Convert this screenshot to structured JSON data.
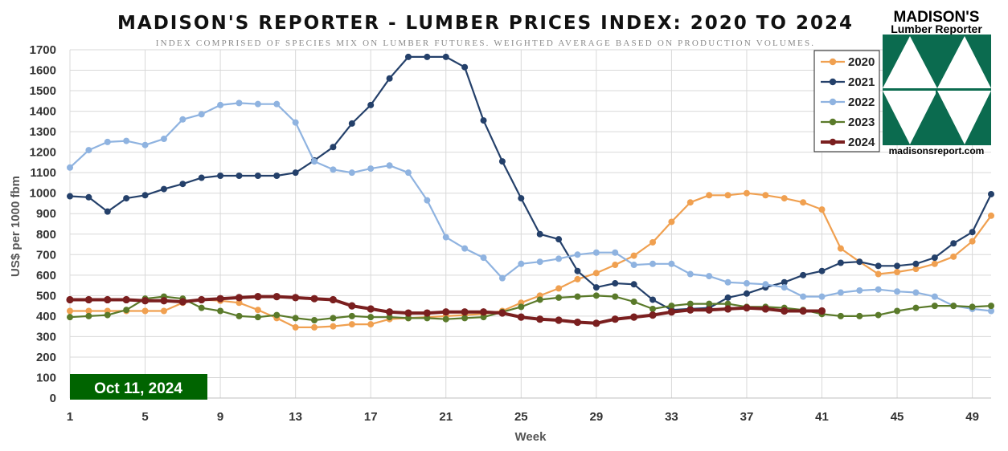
{
  "chart_data": {
    "type": "line",
    "title": "MADISON'S REPORTER - LUMBER PRICES INDEX: 2020 TO 2024",
    "subtitle": "INDEX COMPRISED OF SPECIES MIX ON LUMBER FUTURES. WEIGHTED AVERAGE BASED ON PRODUCTION VOLUMES.",
    "xlabel": "Week",
    "ylabel": "US$ per 1000 fbm",
    "xlim": [
      1,
      50
    ],
    "ylim": [
      0,
      1700
    ],
    "x_ticks": [
      1,
      5,
      9,
      13,
      17,
      21,
      25,
      29,
      33,
      37,
      41,
      45,
      49
    ],
    "y_ticks": [
      0,
      100,
      200,
      300,
      400,
      500,
      600,
      700,
      800,
      900,
      1000,
      1100,
      1200,
      1300,
      1400,
      1500,
      1600,
      1700
    ],
    "grid": "horizontal and vertical",
    "legend_position": "top-right",
    "series": [
      {
        "name": "2020",
        "color": "#f0a050",
        "values": [
          425,
          425,
          425,
          425,
          425,
          425,
          465,
          480,
          475,
          465,
          430,
          390,
          345,
          345,
          350,
          360,
          360,
          385,
          390,
          395,
          400,
          405,
          410,
          425,
          465,
          500,
          535,
          580,
          610,
          650,
          695,
          760,
          860,
          955,
          990,
          990,
          1000,
          990,
          975,
          955,
          920,
          730,
          665,
          605,
          615,
          630,
          655,
          690,
          765,
          890
        ]
      },
      {
        "name": "2021",
        "color": "#24406a",
        "values": [
          985,
          980,
          910,
          975,
          990,
          1020,
          1045,
          1075,
          1085,
          1085,
          1085,
          1085,
          1100,
          1160,
          1225,
          1340,
          1430,
          1560,
          1665,
          1665,
          1665,
          1615,
          1355,
          1155,
          975,
          800,
          775,
          620,
          540,
          560,
          555,
          480,
          430,
          435,
          440,
          490,
          510,
          540,
          565,
          600,
          620,
          660,
          665,
          645,
          645,
          655,
          685,
          755,
          810,
          995
        ]
      },
      {
        "name": "2022",
        "color": "#8fb3e0",
        "values": [
          1125,
          1210,
          1250,
          1255,
          1235,
          1265,
          1360,
          1385,
          1430,
          1440,
          1435,
          1435,
          1345,
          1155,
          1115,
          1100,
          1120,
          1135,
          1100,
          965,
          785,
          730,
          685,
          585,
          655,
          665,
          680,
          700,
          710,
          710,
          650,
          655,
          655,
          605,
          595,
          565,
          560,
          555,
          540,
          495,
          495,
          515,
          525,
          530,
          520,
          515,
          495,
          450,
          435,
          425
        ]
      },
      {
        "name": "2023",
        "color": "#5a7a2a",
        "values": [
          395,
          400,
          405,
          430,
          485,
          495,
          485,
          440,
          425,
          400,
          395,
          405,
          390,
          380,
          390,
          400,
          395,
          395,
          390,
          390,
          385,
          390,
          395,
          420,
          445,
          480,
          490,
          495,
          500,
          495,
          470,
          435,
          450,
          460,
          460,
          460,
          445,
          445,
          440,
          430,
          410,
          400,
          400,
          405,
          425,
          440,
          450,
          450,
          445,
          450
        ]
      },
      {
        "name": "2024",
        "color": "#7a1f1f",
        "values": [
          480,
          480,
          480,
          480,
          475,
          475,
          470,
          480,
          485,
          490,
          495,
          495,
          490,
          485,
          480,
          450,
          435,
          420,
          415,
          415,
          420,
          420,
          420,
          415,
          395,
          385,
          380,
          370,
          365,
          385,
          395,
          405,
          420,
          430,
          430,
          435,
          440,
          435,
          425,
          425,
          425
        ]
      }
    ]
  },
  "date_badge": "Oct 11, 2024",
  "logo": {
    "name": "MADISON'S",
    "subname": "Lumber Reporter",
    "url": "madisonsreport.com",
    "color": "#0b6b4f"
  },
  "badge_color": "#006400"
}
